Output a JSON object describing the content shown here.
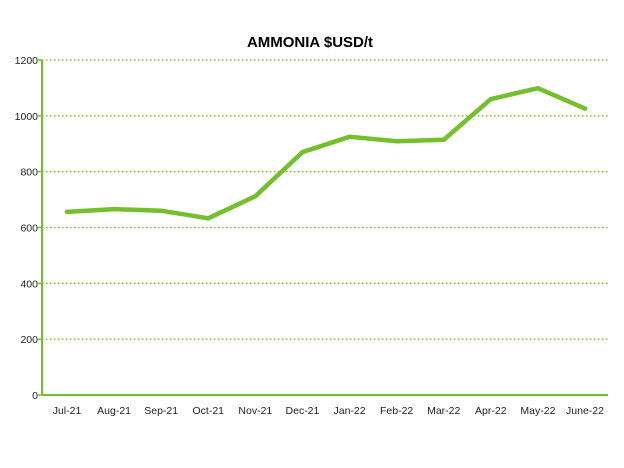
{
  "chart_data": {
    "type": "line",
    "title": "AMMONIA $USD/t",
    "xlabel": "",
    "ylabel": "",
    "categories": [
      "Jul-21",
      "Aug-21",
      "Sep-21",
      "Oct-21",
      "Nov-21",
      "Dec-21",
      "Jan-22",
      "Feb-22",
      "Mar-22",
      "Apr-22",
      "May-22",
      "June-22"
    ],
    "series": [
      {
        "values": [
          656,
          666,
          660,
          633,
          712,
          870,
          925,
          909,
          914,
          1060,
          1099,
          1026
        ]
      }
    ],
    "yticks": [
      0,
      200,
      400,
      600,
      800,
      1000,
      1200
    ],
    "ylim": [
      0,
      1200
    ],
    "grid": "horizontal dotted",
    "legend": "none",
    "colors": {
      "line": "#73bf2e",
      "axis": "#73bf2e",
      "grid": "#73bf2e"
    }
  }
}
